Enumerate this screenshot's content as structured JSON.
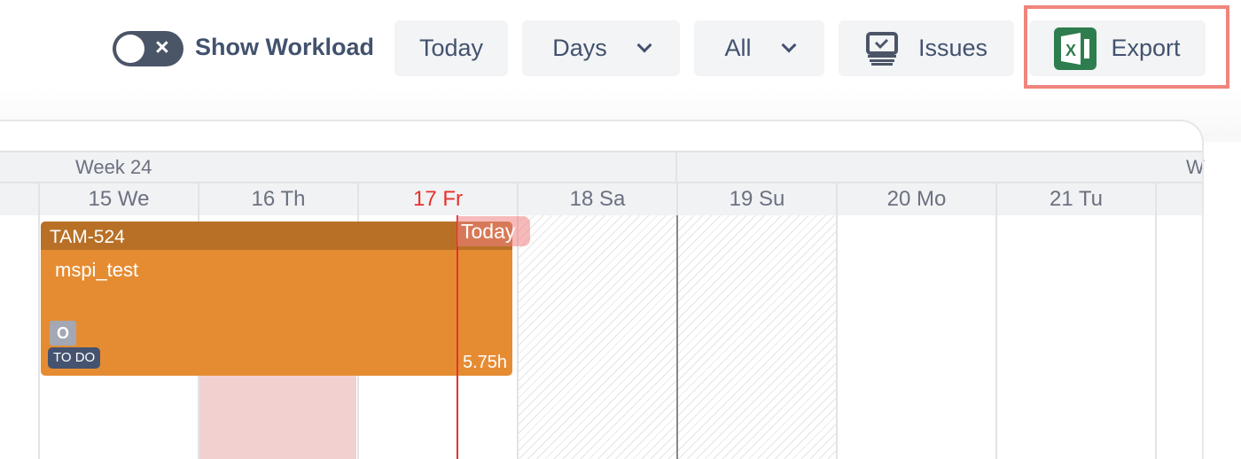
{
  "toolbar": {
    "workload_toggle": {
      "label": "Show Workload",
      "on": false
    },
    "today_label": "Today",
    "view_select": "Days",
    "filter_select": "All",
    "issues_label": "Issues",
    "export_label": "Export"
  },
  "calendar": {
    "week_label": "Week 24",
    "next_week_label_partial": "W",
    "days": [
      "15 We",
      "16 Th",
      "17 Fr",
      "18 Sa",
      "19 Su",
      "20 Mo",
      "21 Tu"
    ],
    "today_index": 2,
    "today_marker": "Today",
    "colors": {
      "today": "#e5322d",
      "task": "#e58c33",
      "task_header": "#b87026",
      "highlight": "#f0857c",
      "excel": "#2e7d4f"
    }
  },
  "task": {
    "key": "TAM-524",
    "title": "mspi_test",
    "assignee_initial": "O",
    "status": "TO DO",
    "estimate": "5.75h"
  }
}
